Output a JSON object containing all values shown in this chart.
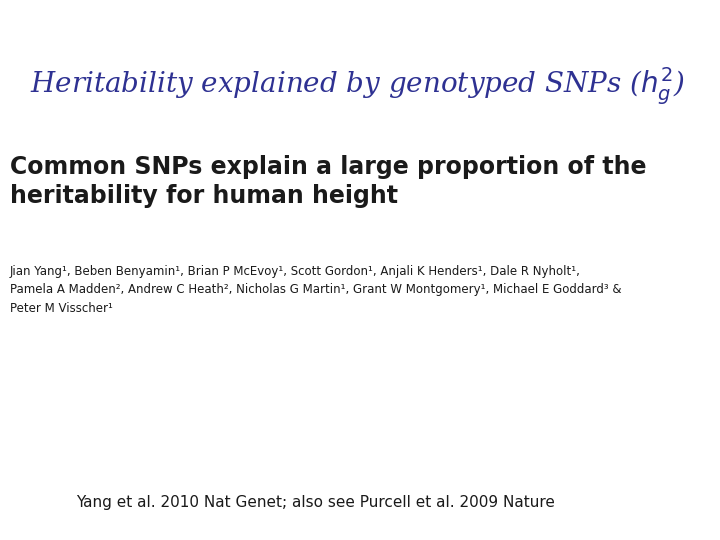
{
  "title_color": "#2e3192",
  "title_fontsize": 20,
  "paper_title_line1": "Common SNPs explain a large proportion of the",
  "paper_title_line2": "heritability for human height",
  "paper_title_fontsize": 17,
  "paper_title_color": "#1a1a1a",
  "authors_line1": "Jian Yang¹, Beben Benyamin¹, Brian P McEvoy¹, Scott Gordon¹, Anjali K Henders¹, Dale R Nyholt¹,",
  "authors_line2": "Pamela A Madden², Andrew C Heath², Nicholas G Martin¹, Grant W Montgomery¹, Michael E Goddard³ &",
  "authors_line3": "Peter M Visscher¹",
  "authors_fontsize": 8.5,
  "authors_color": "#1a1a1a",
  "footer_text": "Yang et al. 2010 Nat Genet; also see Purcell et al. 2009 Nature",
  "footer_fontsize": 11,
  "footer_color": "#1a1a1a",
  "bg_color": "#ffffff"
}
